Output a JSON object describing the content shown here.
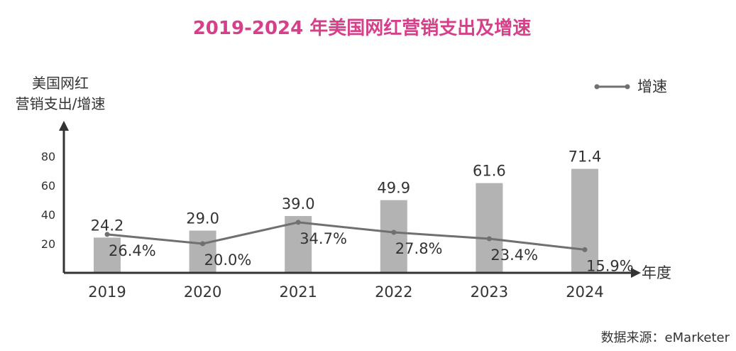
{
  "chart_data": {
    "type": "bar",
    "title": "2019-2024 年美国网红营销支出及增速",
    "title_color": "#d6408a",
    "ylabel_line1": "美国网红",
    "ylabel_line2": "营销支出/增速",
    "xlabel": "年度",
    "categories": [
      "2019",
      "2020",
      "2021",
      "2022",
      "2023",
      "2024"
    ],
    "ylim": [
      0,
      100
    ],
    "yticks": [
      20,
      40,
      60,
      80
    ],
    "series": [
      {
        "kind": "bar",
        "values": [
          24.2,
          29.0,
          39.0,
          49.9,
          61.6,
          71.4
        ],
        "labels": [
          "24.2",
          "29.0",
          "39.0",
          "49.9",
          "61.6",
          "71.4"
        ],
        "color": "#b3b3b3"
      },
      {
        "kind": "line",
        "name": "增速",
        "values": [
          26.4,
          20.0,
          34.7,
          27.8,
          23.4,
          15.9
        ],
        "labels": [
          "26.4%",
          "20.0%",
          "34.7%",
          "27.8%",
          "23.4%",
          "15.9%"
        ],
        "color": "#707070"
      }
    ],
    "grid": false,
    "legend": "top-right",
    "source": "数据来源：eMarketer"
  }
}
